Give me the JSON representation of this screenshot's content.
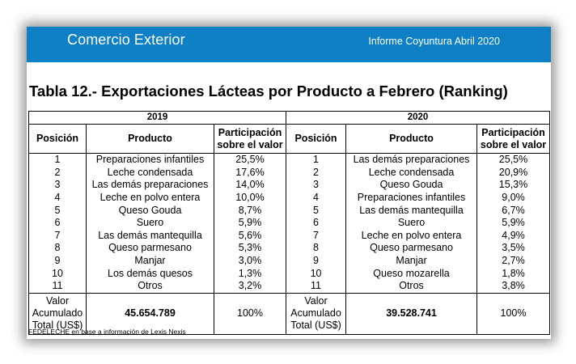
{
  "header": {
    "title": "Comercio Exterior",
    "report": "Informe Coyuntura Abril 2020"
  },
  "table_title": "Tabla 12.- Exportaciones Lácteas por Producto a Febrero (Ranking)",
  "columns": {
    "position": "Posición",
    "product": "Producto",
    "share_line1": "Participación",
    "share_line2": "sobre el valor"
  },
  "year_left": {
    "label": "2019",
    "rows": [
      {
        "pos": "1",
        "product": "Preparaciones infantiles",
        "share": "25,5%"
      },
      {
        "pos": "2",
        "product": "Leche condensada",
        "share": "17,6%"
      },
      {
        "pos": "3",
        "product": "Las demás preparaciones",
        "share": "14,0%"
      },
      {
        "pos": "4",
        "product": "Leche en polvo entera",
        "share": "10,0%"
      },
      {
        "pos": "5",
        "product": "Queso Gouda",
        "share": "8,7%"
      },
      {
        "pos": "6",
        "product": "Suero",
        "share": "5,9%"
      },
      {
        "pos": "7",
        "product": "Las demás mantequilla",
        "share": "5,6%"
      },
      {
        "pos": "8",
        "product": "Queso parmesano",
        "share": "5,3%"
      },
      {
        "pos": "9",
        "product": "Manjar",
        "share": "3,0%"
      },
      {
        "pos": "10",
        "product": "Los demás quesos",
        "share": "1,3%"
      },
      {
        "pos": "11",
        "product": "Otros",
        "share": "3,2%"
      }
    ],
    "total": {
      "line1": "Valor",
      "line2": "Acumulado",
      "line3": "Total (US$)",
      "value": "45.654.789",
      "share": "100%"
    }
  },
  "year_right": {
    "label": "2020",
    "rows": [
      {
        "pos": "1",
        "product": "Las demás preparaciones",
        "share": "25,5%"
      },
      {
        "pos": "2",
        "product": "Leche condensada",
        "share": "20,9%"
      },
      {
        "pos": "3",
        "product": "Queso Gouda",
        "share": "15,3%"
      },
      {
        "pos": "4",
        "product": "Preparaciones infantiles",
        "share": "9,0%"
      },
      {
        "pos": "5",
        "product": "Las demás mantequilla",
        "share": "6,7%"
      },
      {
        "pos": "6",
        "product": "Suero",
        "share": "5,9%"
      },
      {
        "pos": "7",
        "product": "Leche en polvo entera",
        "share": "4,9%"
      },
      {
        "pos": "8",
        "product": "Queso parmesano",
        "share": "3,5%"
      },
      {
        "pos": "9",
        "product": "Manjar",
        "share": "2,7%"
      },
      {
        "pos": "10",
        "product": "Queso mozarella",
        "share": "1,8%"
      },
      {
        "pos": "11",
        "product": "Otros",
        "share": "3,8%"
      }
    ],
    "total": {
      "line1": "Valor",
      "line2": "Acumulado",
      "line3": "Total (US$)",
      "value": "39.528.741",
      "share": "100%"
    }
  },
  "source": "FEDELECHE en base a información de Lexis Nexis",
  "colors": {
    "banner": "#0f80c6",
    "banner_text": "#ffffff"
  }
}
